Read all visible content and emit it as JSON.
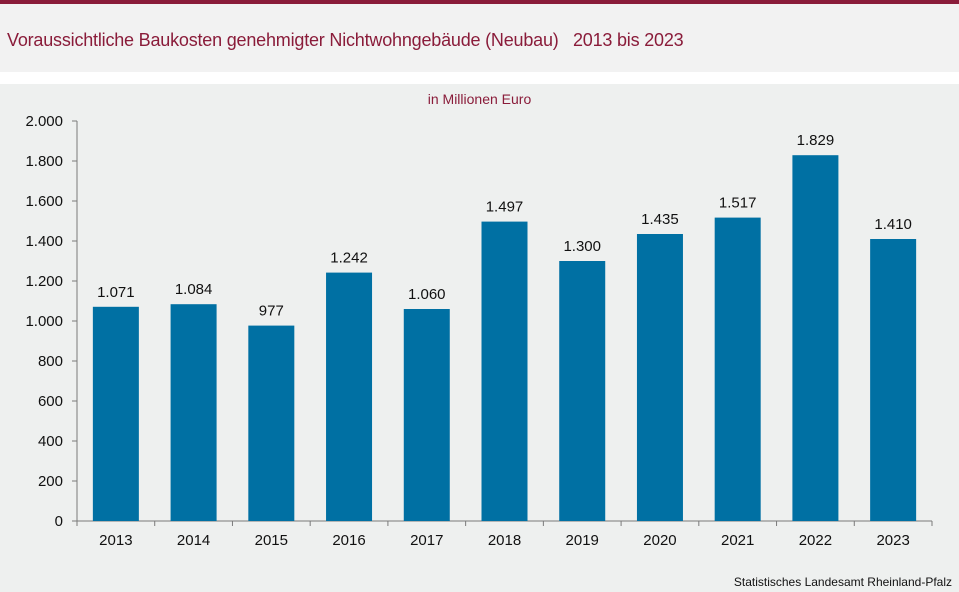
{
  "header": {
    "title": "Voraussichtliche Baukosten genehmigter Nichtwohngebäude (Neubau)   2013 bis 2023"
  },
  "footer": {
    "source": "Statistisches Landesamt Rheinland-Pfalz"
  },
  "colors": {
    "accent": "#8a1c3a",
    "bar": "#0070a3",
    "background": "#eef0ef"
  },
  "chart_data": {
    "type": "bar",
    "subtitle": "in Millionen Euro",
    "categories": [
      "2013",
      "2014",
      "2015",
      "2016",
      "2017",
      "2018",
      "2019",
      "2020",
      "2021",
      "2022",
      "2023"
    ],
    "values": [
      1071,
      1084,
      977,
      1242,
      1060,
      1497,
      1300,
      1435,
      1517,
      1829,
      1410
    ],
    "value_labels": [
      "1.071",
      "1.084",
      "977",
      "1.242",
      "1.060",
      "1.497",
      "1.300",
      "1.435",
      "1.517",
      "1.829",
      "1.410"
    ],
    "ylim": [
      0,
      2000
    ],
    "y_ticks": [
      0,
      200,
      400,
      600,
      800,
      1000,
      1200,
      1400,
      1600,
      1800,
      2000
    ],
    "y_tick_labels": [
      "0",
      "200",
      "400",
      "600",
      "800",
      "1.000",
      "1.200",
      "1.400",
      "1.600",
      "1.800",
      "2.000"
    ],
    "grid": false,
    "legend": "none"
  }
}
